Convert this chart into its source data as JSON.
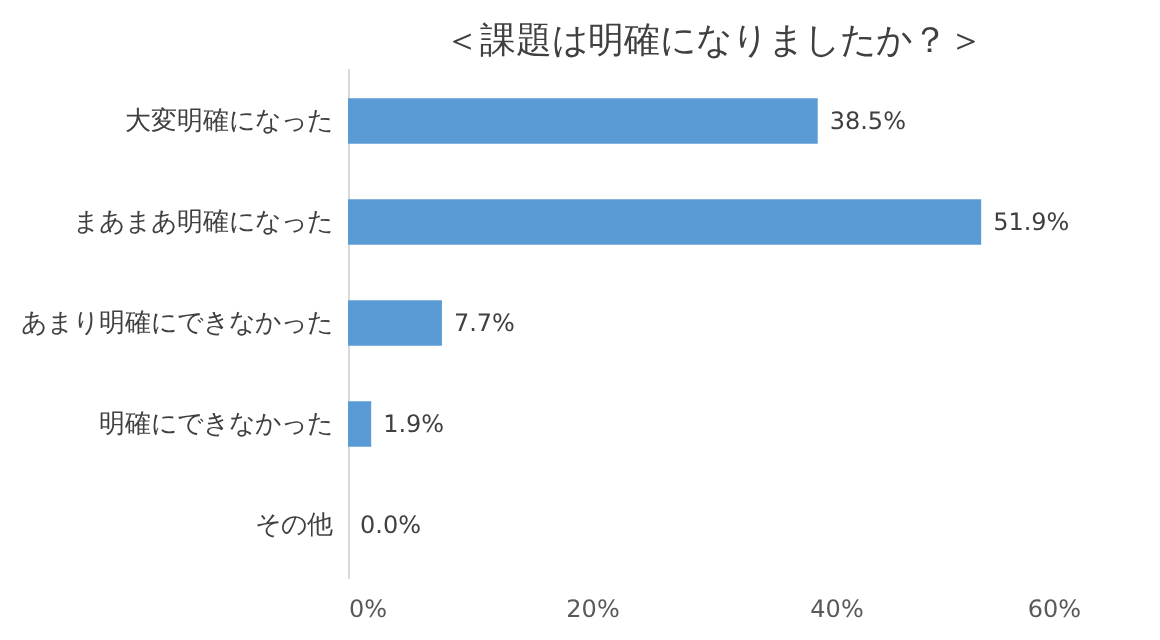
{
  "chart_data": {
    "type": "bar",
    "orientation": "horizontal",
    "title": "＜課題は明確になりましたか？＞",
    "categories": [
      "大変明確になった",
      "まあまあ明確になった",
      "あまり明確にできなかった",
      "明確にできなかった",
      "その他"
    ],
    "values": [
      38.5,
      51.9,
      7.7,
      1.9,
      0.0
    ],
    "value_labels": [
      "38.5%",
      "51.9%",
      "7.7%",
      "1.9%",
      "0.0%"
    ],
    "color": "#5b9bd5",
    "xlim": [
      0,
      60
    ],
    "xticks": [
      {
        "value": 0,
        "label": "0%"
      },
      {
        "value": 20,
        "label": "20%"
      },
      {
        "value": 40,
        "label": "40%"
      },
      {
        "value": 60,
        "label": "60%"
      }
    ],
    "grid": false
  }
}
